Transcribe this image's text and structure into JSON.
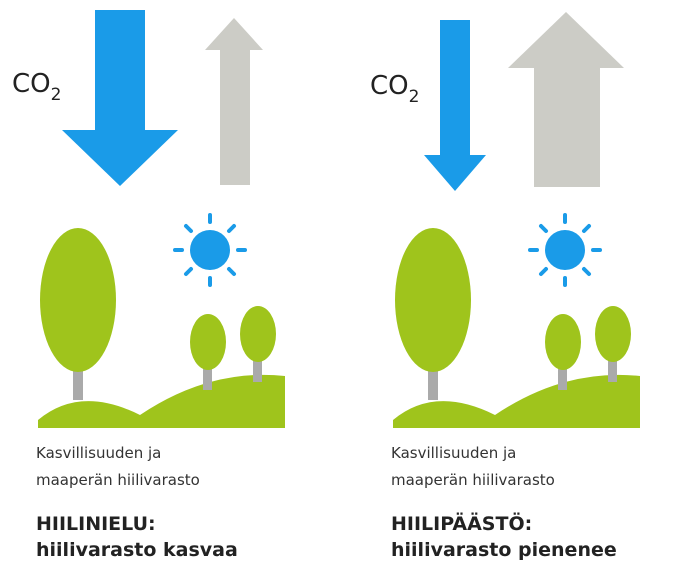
{
  "panels": [
    {
      "co2": {
        "text": "CO",
        "subscript": "2"
      },
      "caption": [
        "Kasvillisuuden ja",
        "maaperän hiilivarasto"
      ],
      "title": "HIILINIELU:",
      "subtitle": "hiilivarasto kasvaa"
    },
    {
      "co2": {
        "text": "CO",
        "subscript": "2"
      },
      "caption": [
        "Kasvillisuuden ja",
        "maaperän hiilivarasto"
      ],
      "title": "HIILIPÄÄSTÖ:",
      "subtitle": "hiilivarasto pienenee"
    }
  ]
}
